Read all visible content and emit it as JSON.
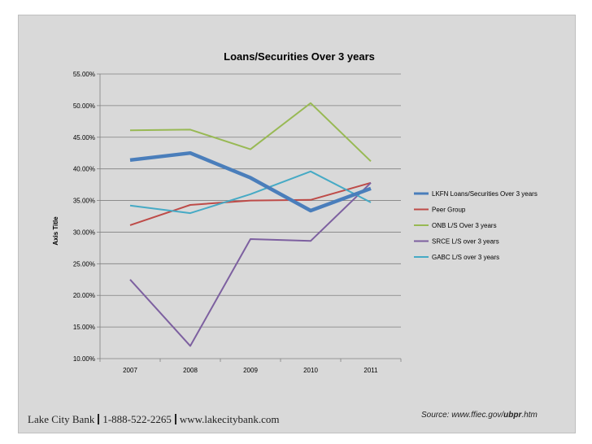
{
  "footer": {
    "bank": "Lake City Bank",
    "phone": "1-888-522-2265",
    "website": "www.lakecitybank.com"
  },
  "source": {
    "prefix": "Source: www.ffiec.gov/",
    "bold": "ubpr",
    "suffix": ".htm"
  },
  "chart_data": {
    "type": "line",
    "title": "Loans/Securities Over 3 years",
    "xlabel": "",
    "ylabel": "Axis Title",
    "categories": [
      "2007",
      "2008",
      "2009",
      "2010",
      "2011"
    ],
    "ylim": [
      10,
      55
    ],
    "yticks": [
      "55.00%",
      "50.00%",
      "45.00%",
      "40.00%",
      "35.00%",
      "30.00%",
      "25.00%",
      "20.00%",
      "15.00%",
      "10.00%"
    ],
    "ytick_values": [
      55,
      50,
      45,
      40,
      35,
      30,
      25,
      20,
      15,
      10
    ],
    "grid": "horizontal",
    "legend_position": "right",
    "series": [
      {
        "name": "LKFN Loans/Securities Over 3 years",
        "color": "#4a7ebb",
        "emphasis": true,
        "values": [
          41.4,
          42.5,
          38.6,
          33.4,
          36.9
        ]
      },
      {
        "name": "Peer Group",
        "color": "#be4b48",
        "values": [
          31.1,
          34.3,
          35.0,
          35.1,
          37.8
        ]
      },
      {
        "name": "ONB L/S Over 3 years",
        "color": "#98b954",
        "values": [
          46.1,
          46.2,
          43.1,
          50.4,
          41.2
        ]
      },
      {
        "name": "SRCE L/S over 3 years",
        "color": "#7d60a0",
        "values": [
          22.5,
          12.0,
          28.9,
          28.6,
          37.8
        ]
      },
      {
        "name": "GABC L/S over 3 years",
        "color": "#46aac5",
        "values": [
          34.2,
          33.0,
          36.0,
          39.6,
          34.7
        ]
      }
    ]
  }
}
